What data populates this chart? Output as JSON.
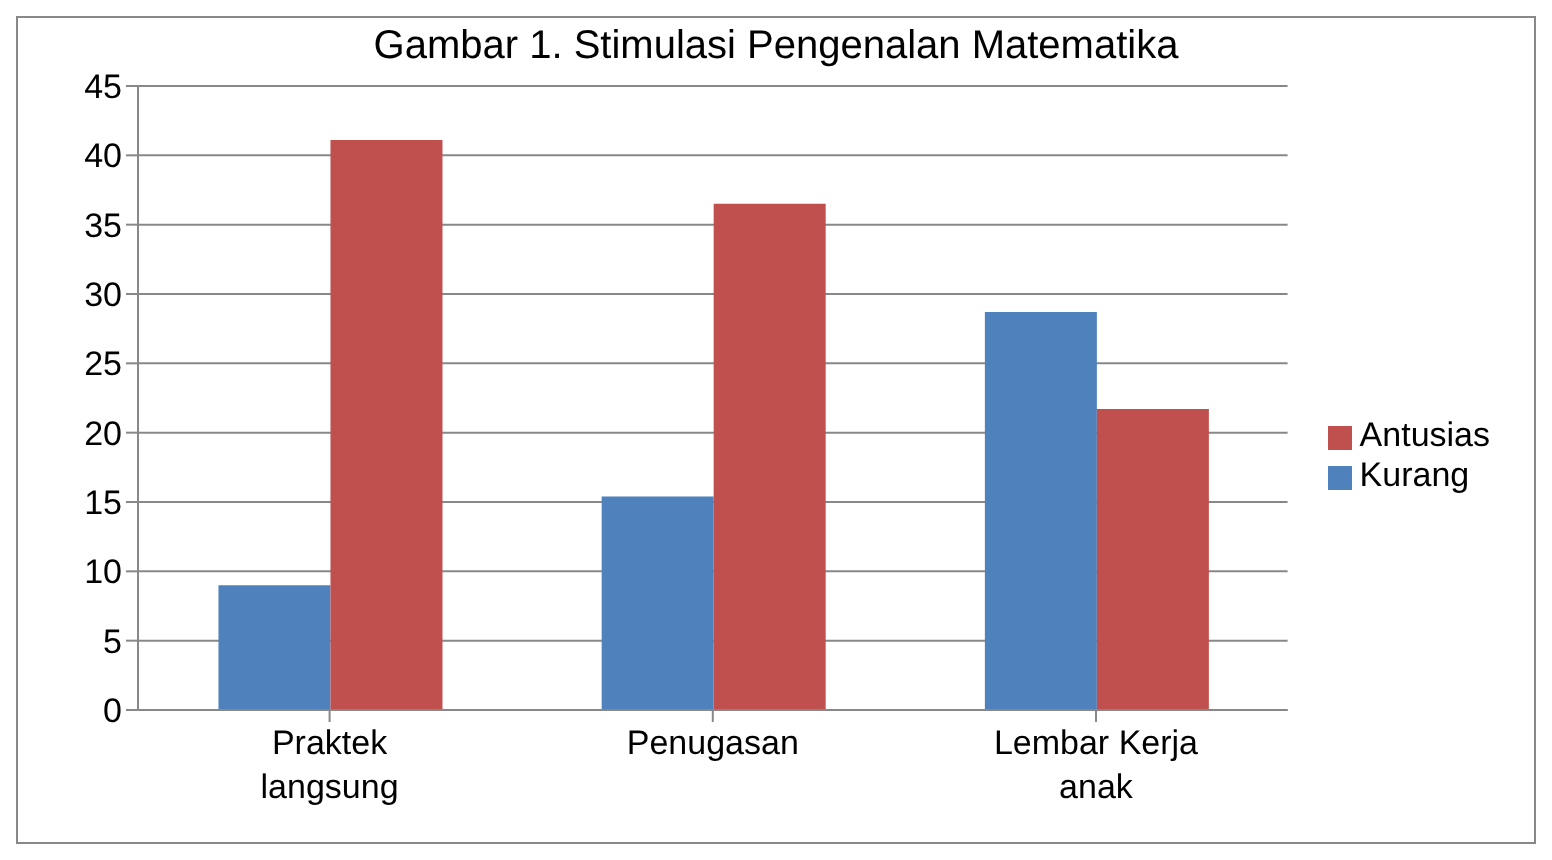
{
  "chart_data": {
    "type": "bar",
    "title": "Gambar 1. Stimulasi Pengenalan Matematika",
    "categories": [
      "Praktek langsung",
      "Penugasan",
      "Lembar Kerja anak"
    ],
    "series": [
      {
        "name": "Kurang",
        "color": "#4f81bd",
        "values": [
          9,
          15.4,
          28.7
        ]
      },
      {
        "name": "Antusias",
        "color": "#c0504d",
        "values": [
          41.1,
          36.5,
          21.7
        ]
      }
    ],
    "ylim": [
      0,
      45
    ],
    "yticks": [
      0,
      5,
      10,
      15,
      20,
      25,
      30,
      35,
      40,
      45
    ],
    "grid": "y",
    "legend": "right"
  }
}
